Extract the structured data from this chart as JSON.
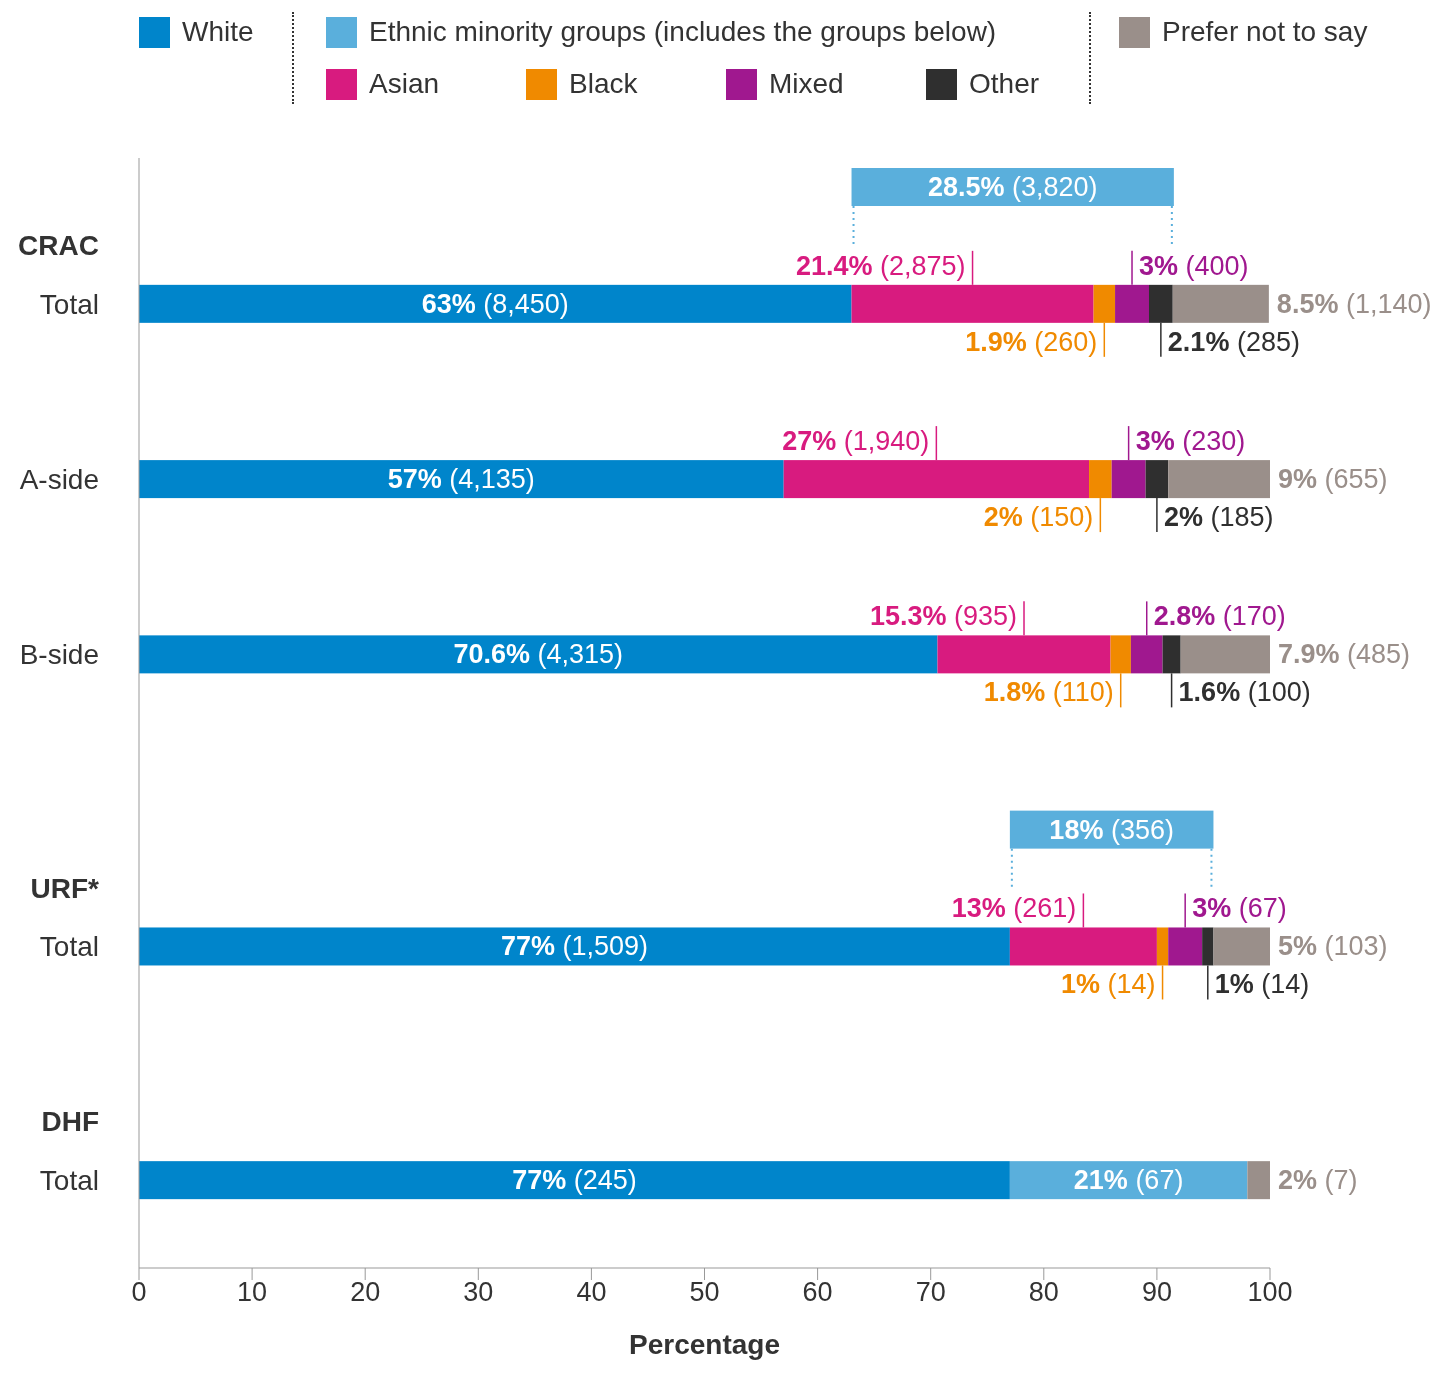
{
  "chart_data": {
    "type": "bar",
    "orientation": "horizontal",
    "stacked": true,
    "xlabel": "Percentage",
    "legend": "top",
    "grid": false,
    "categories": [
      null,
      "CRAC",
      "Total",
      null,
      null,
      "A-side",
      null,
      null,
      "B-side",
      null,
      null,
      null,
      "URF*",
      "Total",
      null,
      null,
      "DHF",
      "Total",
      null
    ],
    "xlim": [
      0,
      100
    ],
    "xticks": [
      0,
      10,
      20,
      30,
      40,
      50,
      60,
      70,
      80,
      90,
      100
    ],
    "series": [
      {
        "name": "White",
        "color": "#0085cb",
        "values": [
          null,
          null,
          63,
          null,
          null,
          57,
          null,
          null,
          70.6,
          null,
          null,
          null,
          null,
          77,
          null,
          null,
          null,
          77,
          null
        ],
        "value_labels": [
          null,
          null,
          "63% (8,450)",
          null,
          null,
          "57% (4,135)",
          null,
          null,
          "70.6% (4,315)",
          null,
          null,
          null,
          null,
          "77% (1,509)",
          null,
          null,
          null,
          "77% (245)",
          null
        ]
      },
      {
        "name": "Ethnic minority groups (includes the groups below)",
        "color": "#5aafdc",
        "base": [
          63,
          null,
          null,
          null,
          null,
          null,
          null,
          null,
          null,
          null,
          null,
          77,
          null,
          null,
          null,
          null,
          null,
          77,
          null
        ],
        "values": [
          28.5,
          null,
          null,
          null,
          null,
          null,
          null,
          null,
          null,
          null,
          null,
          18,
          null,
          null,
          null,
          null,
          null,
          21,
          null
        ],
        "value_labels": [
          "28.5% (3,820)",
          null,
          null,
          null,
          null,
          null,
          null,
          null,
          null,
          null,
          null,
          "18% (356)",
          null,
          null,
          null,
          null,
          null,
          "21% (67)",
          null
        ]
      },
      {
        "name": "Asian",
        "color": "#d81b7f",
        "values": [
          null,
          null,
          21.4,
          null,
          null,
          27,
          null,
          null,
          15.3,
          null,
          null,
          null,
          null,
          13,
          null,
          null,
          null,
          null,
          null
        ],
        "value_labels": [
          null,
          null,
          "21.4% (2,875)",
          null,
          null,
          "27% (1,940)",
          null,
          null,
          "15.3% (935)",
          null,
          null,
          null,
          null,
          "13% (261)",
          null,
          null,
          null,
          null,
          null
        ]
      },
      {
        "name": "Black",
        "color": "#f08a00",
        "values": [
          null,
          null,
          1.9,
          null,
          null,
          2,
          null,
          null,
          1.8,
          null,
          null,
          null,
          null,
          1,
          null,
          null,
          null,
          null,
          null
        ],
        "value_labels": [
          null,
          null,
          "1.9% (260)",
          null,
          null,
          "2% (150)",
          null,
          null,
          "1.8% (110)",
          null,
          null,
          null,
          null,
          "1% (14)",
          null,
          null,
          null,
          null,
          null
        ]
      },
      {
        "name": "Mixed",
        "color": "#a0188f",
        "values": [
          null,
          null,
          3,
          null,
          null,
          3,
          null,
          null,
          2.8,
          null,
          null,
          null,
          null,
          3,
          null,
          null,
          null,
          null,
          null
        ],
        "value_labels": [
          null,
          null,
          "3% (400)",
          null,
          null,
          "3% (230)",
          null,
          null,
          "2.8% (170)",
          null,
          null,
          null,
          null,
          "3% (67)",
          null,
          null,
          null,
          null,
          null
        ]
      },
      {
        "name": "Other",
        "color": "#2f2f2f",
        "values": [
          null,
          null,
          2.1,
          null,
          null,
          2,
          null,
          null,
          1.6,
          null,
          null,
          null,
          null,
          1,
          null,
          null,
          null,
          null,
          null
        ],
        "value_labels": [
          null,
          null,
          "2.1% (285)",
          null,
          null,
          "2% (185)",
          null,
          null,
          "1.6% (100)",
          null,
          null,
          null,
          null,
          "1% (14)",
          null,
          null,
          null,
          null,
          null
        ]
      },
      {
        "name": "Prefer not to say",
        "color": "#9a8f8a",
        "values": [
          null,
          null,
          8.5,
          null,
          null,
          9,
          null,
          null,
          7.9,
          null,
          null,
          null,
          null,
          5,
          null,
          null,
          null,
          2,
          null
        ],
        "value_labels": [
          null,
          null,
          "8.5% (1,140)",
          null,
          null,
          "9% (655)",
          null,
          null,
          "7.9% (485)",
          null,
          null,
          null,
          null,
          "5% (103)",
          null,
          null,
          null,
          "2% (7)",
          null
        ]
      }
    ]
  }
}
